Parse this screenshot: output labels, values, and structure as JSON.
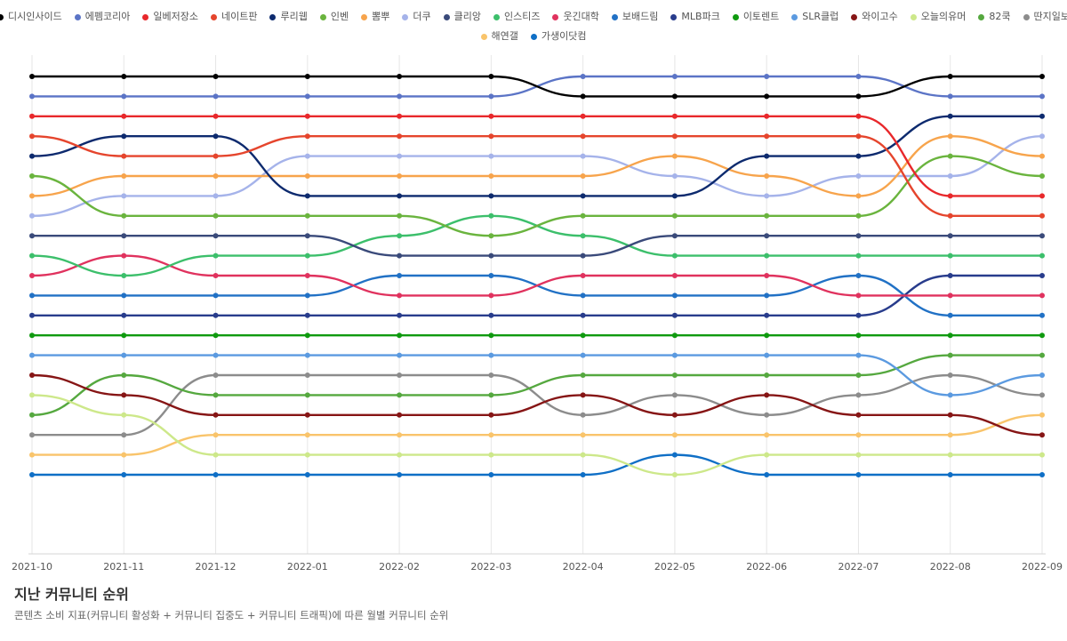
{
  "chart_data": {
    "type": "line",
    "title": "지난 커뮤니티 순위",
    "subtitle": "콘텐츠 소비 지표(커뮤니티 활성화 + 커뮤니티 집중도 + 커뮤니티 트래픽)에 따른 월별 커뮤니티 순위",
    "x": [
      "2021-10",
      "2021-11",
      "2021-12",
      "2022-01",
      "2022-02",
      "2022-03",
      "2022-04",
      "2022-05",
      "2022-06",
      "2022-07",
      "2022-08",
      "2022-09"
    ],
    "y_axis": "rank (1 = top)",
    "ylim": [
      1,
      21
    ],
    "grid": "vertical",
    "legend": "top-center",
    "series": [
      {
        "name": "디시인사이드",
        "color": "#000000",
        "values": [
          1,
          1,
          1,
          1,
          1,
          1,
          2,
          2,
          2,
          2,
          1,
          1
        ]
      },
      {
        "name": "에펨코리아",
        "color": "#5b74c6",
        "values": [
          2,
          2,
          2,
          2,
          2,
          2,
          1,
          1,
          1,
          1,
          2,
          2
        ]
      },
      {
        "name": "일베저장소",
        "color": "#e8282b",
        "values": [
          3,
          3,
          3,
          3,
          3,
          3,
          3,
          3,
          3,
          3,
          7,
          7
        ]
      },
      {
        "name": "네이트판",
        "color": "#e5452d",
        "values": [
          4,
          5,
          5,
          4,
          4,
          4,
          4,
          4,
          4,
          4,
          8,
          8
        ]
      },
      {
        "name": "루리웹",
        "color": "#0d2a6e",
        "values": [
          5,
          4,
          4,
          7,
          7,
          7,
          7,
          7,
          5,
          5,
          3,
          3
        ]
      },
      {
        "name": "인벤",
        "color": "#6ab43e",
        "values": [
          6,
          8,
          8,
          8,
          8,
          9,
          8,
          8,
          8,
          8,
          5,
          6
        ]
      },
      {
        "name": "뽐뿌",
        "color": "#f7a44c",
        "values": [
          7,
          6,
          6,
          6,
          6,
          6,
          6,
          5,
          6,
          7,
          4,
          5
        ]
      },
      {
        "name": "더쿠",
        "color": "#a5b3ea",
        "values": [
          8,
          7,
          7,
          5,
          5,
          5,
          5,
          6,
          7,
          6,
          6,
          4
        ]
      },
      {
        "name": "클리앙",
        "color": "#3a4a7a",
        "values": [
          9,
          9,
          9,
          9,
          10,
          10,
          10,
          9,
          9,
          9,
          9,
          9
        ]
      },
      {
        "name": "인스티즈",
        "color": "#3cbf6b",
        "values": [
          10,
          11,
          10,
          10,
          9,
          8,
          9,
          10,
          10,
          10,
          10,
          10
        ]
      },
      {
        "name": "웃긴대학",
        "color": "#e0325e",
        "values": [
          11,
          10,
          11,
          11,
          12,
          12,
          11,
          11,
          11,
          12,
          12,
          12
        ]
      },
      {
        "name": "보배드림",
        "color": "#2171c5",
        "values": [
          12,
          12,
          12,
          12,
          11,
          11,
          12,
          12,
          12,
          11,
          13,
          13
        ]
      },
      {
        "name": "MLB파크",
        "color": "#283c8c",
        "values": [
          13,
          13,
          13,
          13,
          13,
          13,
          13,
          13,
          13,
          13,
          11,
          11
        ]
      },
      {
        "name": "이토렌트",
        "color": "#0f9a0f",
        "values": [
          14,
          14,
          14,
          14,
          14,
          14,
          14,
          14,
          14,
          14,
          14,
          14
        ]
      },
      {
        "name": "SLR클럽",
        "color": "#5b9ae0",
        "values": [
          15,
          15,
          15,
          15,
          15,
          15,
          15,
          15,
          15,
          15,
          17,
          16
        ]
      },
      {
        "name": "와이고수",
        "color": "#861515",
        "values": [
          16,
          17,
          18,
          18,
          18,
          18,
          17,
          18,
          17,
          18,
          18,
          19
        ]
      },
      {
        "name": "오늘의유머",
        "color": "#cde88a",
        "values": [
          17,
          18,
          20,
          20,
          20,
          20,
          20,
          21,
          20,
          20,
          20,
          20
        ]
      },
      {
        "name": "82쿡",
        "color": "#55a83f",
        "values": [
          18,
          16,
          17,
          17,
          17,
          17,
          16,
          16,
          16,
          16,
          15,
          15
        ]
      },
      {
        "name": "딴지일보",
        "color": "#8c8c8c",
        "values": [
          19,
          19,
          16,
          16,
          16,
          16,
          18,
          17,
          18,
          17,
          16,
          17
        ]
      },
      {
        "name": "해연갤",
        "color": "#f9c46b",
        "values": [
          20,
          20,
          19,
          19,
          19,
          19,
          19,
          19,
          19,
          19,
          19,
          18
        ]
      },
      {
        "name": "가생이닷컴",
        "color": "#0f6fc6",
        "values": [
          21,
          21,
          21,
          21,
          21,
          21,
          21,
          20,
          21,
          21,
          21,
          21
        ]
      }
    ]
  }
}
